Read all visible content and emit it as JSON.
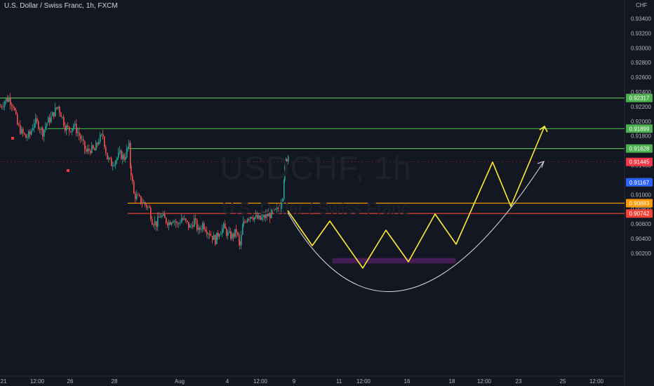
{
  "header": {
    "title": "U.S. Dollar / Swiss Franc, 1h, FXCM",
    "currency": "CHF"
  },
  "watermark": {
    "symbol": "USDCHF, 1h",
    "name": "U.S. Dollar / Swiss Franc"
  },
  "chart_data": {
    "type": "candlestick",
    "ylim": [
      0.902,
      0.935
    ],
    "y_ticks": [
      "0.93400",
      "0.93200",
      "0.93000",
      "0.92800",
      "0.92600",
      "0.92400",
      "0.92200",
      "0.92000",
      "0.91800",
      "0.91600",
      "0.91400",
      "0.91200",
      "0.91000",
      "0.90800",
      "0.90600",
      "0.90400",
      "0.90200"
    ],
    "x_ticks": [
      "21",
      "12:00",
      "26",
      "28",
      "Aug",
      "4",
      "12:00",
      "9",
      "11",
      "12:00",
      "16",
      "18",
      "12:00",
      "23",
      "25",
      "12:00"
    ],
    "price_path": [
      [
        0,
        0.922
      ],
      [
        6,
        0.9228
      ],
      [
        12,
        0.9231
      ],
      [
        18,
        0.9222
      ],
      [
        24,
        0.9195
      ],
      [
        30,
        0.9185
      ],
      [
        36,
        0.9178
      ],
      [
        42,
        0.9182
      ],
      [
        48,
        0.92
      ],
      [
        54,
        0.9195
      ],
      [
        60,
        0.9185
      ],
      [
        66,
        0.9198
      ],
      [
        72,
        0.9205
      ],
      [
        78,
        0.9215
      ],
      [
        82,
        0.922
      ],
      [
        86,
        0.921
      ],
      [
        92,
        0.9193
      ],
      [
        98,
        0.9188
      ],
      [
        104,
        0.9195
      ],
      [
        110,
        0.9185
      ],
      [
        116,
        0.9172
      ],
      [
        122,
        0.9158
      ],
      [
        128,
        0.9162
      ],
      [
        134,
        0.916
      ],
      [
        140,
        0.9175
      ],
      [
        146,
        0.918
      ],
      [
        152,
        0.915
      ],
      [
        158,
        0.9142
      ],
      [
        164,
        0.9148
      ],
      [
        170,
        0.9155
      ],
      [
        176,
        0.915
      ],
      [
        180,
        0.916
      ],
      [
        183,
        0.9165
      ],
      [
        186,
        0.913
      ],
      [
        190,
        0.91
      ],
      [
        196,
        0.9095
      ],
      [
        202,
        0.909
      ],
      [
        208,
        0.9085
      ],
      [
        212,
        0.908
      ],
      [
        216,
        0.9065
      ],
      [
        222,
        0.906
      ],
      [
        228,
        0.9072
      ],
      [
        234,
        0.9066
      ],
      [
        240,
        0.9062
      ],
      [
        246,
        0.9068
      ],
      [
        252,
        0.9058
      ],
      [
        258,
        0.9068
      ],
      [
        264,
        0.9062
      ],
      [
        270,
        0.9055
      ],
      [
        276,
        0.9065
      ],
      [
        282,
        0.905
      ],
      [
        288,
        0.906
      ],
      [
        294,
        0.9052
      ],
      [
        300,
        0.9045
      ],
      [
        306,
        0.9038
      ],
      [
        312,
        0.905
      ],
      [
        318,
        0.9055
      ],
      [
        324,
        0.9045
      ],
      [
        330,
        0.9043
      ],
      [
        336,
        0.905
      ],
      [
        341,
        0.903
      ],
      [
        346,
        0.906
      ],
      [
        352,
        0.907
      ],
      [
        358,
        0.9072
      ],
      [
        364,
        0.9068
      ],
      [
        370,
        0.9066
      ],
      [
        376,
        0.907
      ],
      [
        382,
        0.9072
      ],
      [
        388,
        0.9074
      ],
      [
        394,
        0.9078
      ],
      [
        398,
        0.9085
      ],
      [
        402,
        0.91
      ],
      [
        405,
        0.9135
      ],
      [
        408,
        0.915
      ],
      [
        411,
        0.9155
      ]
    ],
    "horizontal_levels": [
      {
        "price": 0.92317,
        "label": "0.92317",
        "color": "#4caf50",
        "start_x_data": "21"
      },
      {
        "price": 0.91899,
        "label": "0.91899",
        "color": "#4caf50",
        "start_x_data": "26"
      },
      {
        "price": 0.91628,
        "label": "0.91628",
        "color": "#4caf50",
        "start_x_data": "28"
      },
      {
        "price": 0.90883,
        "label": "0.90883",
        "color": "#ff9800",
        "start_x_data": "28"
      },
      {
        "price": 0.90742,
        "label": "0.90742",
        "color": "#f44336",
        "start_x_data": "28"
      }
    ],
    "price_labels": [
      {
        "label": "0.92317",
        "price": 0.92317,
        "color": "#4caf50"
      },
      {
        "label": "0.91899",
        "price": 0.91899,
        "color": "#4caf50"
      },
      {
        "label": "0.91628",
        "price": 0.91628,
        "color": "#4caf50"
      },
      {
        "label": "0.91445",
        "price": 0.91445,
        "color": "#f23645"
      },
      {
        "label": "0.91167",
        "price": 0.91167,
        "color": "#2962ff"
      },
      {
        "label": "0.90883",
        "price": 0.90883,
        "color": "#ff9800"
      },
      {
        "label": "0.90742",
        "price": 0.90742,
        "color": "#f44336"
      }
    ],
    "current_price": 0.91445,
    "projection_path_color": "#ffeb3b",
    "arc_color": "#e0e0e0",
    "zone_color": "#9c27b0"
  }
}
